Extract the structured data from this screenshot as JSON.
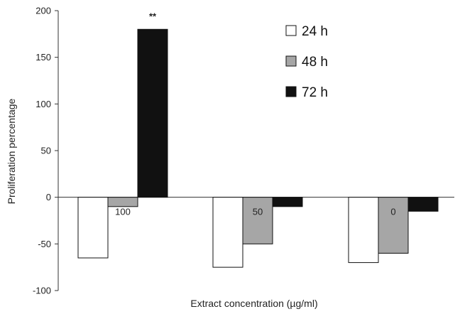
{
  "chart_data": {
    "type": "bar",
    "title": "",
    "xlabel": "Extract concentration  (µg/ml)",
    "ylabel": "Proliferation percentage",
    "ylim": [
      -100,
      200
    ],
    "yticks": [
      200,
      150,
      100,
      50,
      0,
      -50,
      -100
    ],
    "grid": false,
    "legend_position": "top-right",
    "categories": [
      "100",
      "50",
      "0"
    ],
    "series": [
      {
        "name": "24 h",
        "color": "#ffffff",
        "values": [
          -65,
          -75,
          -70
        ]
      },
      {
        "name": "48 h",
        "color": "#a6a6a6",
        "values": [
          -10,
          -50,
          -60
        ]
      },
      {
        "name": "72 h",
        "color": "#111111",
        "values": [
          180,
          -10,
          -15
        ]
      }
    ],
    "annotations": [
      {
        "text": "**",
        "category": "100",
        "series": "72 h"
      }
    ]
  }
}
